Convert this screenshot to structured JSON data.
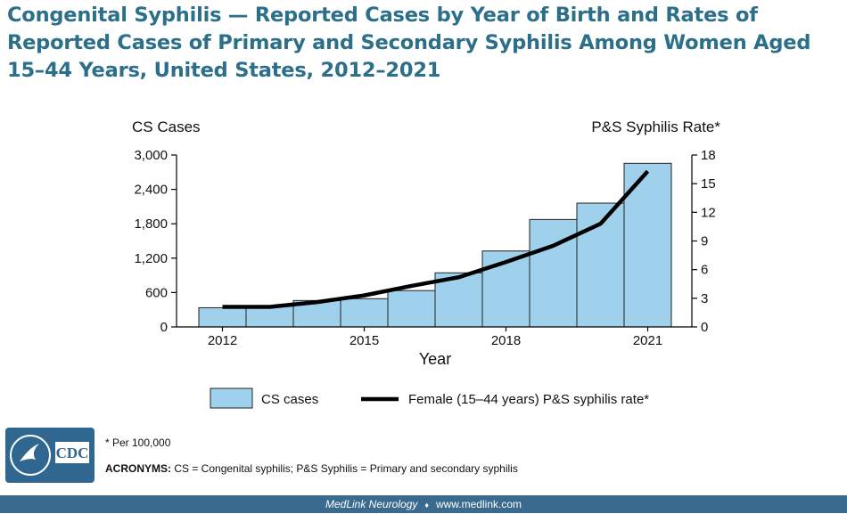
{
  "slide": {
    "title": "Congenital Syphilis — Reported Cases by Year of Birth and Rates of Reported Cases of Primary and Secondary Syphilis Among Women Aged 15–44 Years, United States, 2012–2021"
  },
  "chart_data": {
    "type": "bar",
    "x": [
      2012,
      2013,
      2014,
      2015,
      2016,
      2017,
      2018,
      2019,
      2020,
      2021
    ],
    "series": [
      {
        "name": "CS cases",
        "kind": "bar",
        "axis": "left",
        "values": [
          335,
          363,
          461,
          493,
          634,
          944,
          1325,
          1875,
          2160,
          2855
        ]
      },
      {
        "name": "Female (15–44 years) P&S syphilis rate*",
        "kind": "line",
        "axis": "right",
        "values": [
          2.1,
          2.1,
          2.6,
          3.3,
          4.3,
          5.2,
          6.8,
          8.5,
          10.8,
          16.3
        ]
      }
    ],
    "xlabel": "Year",
    "ylabel_left": "CS Cases",
    "ylabel_right": "P&S Syphilis Rate*",
    "ylim_left": [
      0,
      3000
    ],
    "ylim_right": [
      0,
      18
    ],
    "yticks_left": [
      "0",
      "600",
      "1,200",
      "1,800",
      "2,400",
      "3,000"
    ],
    "yticks_right": [
      "0",
      "3",
      "6",
      "9",
      "12",
      "15",
      "18"
    ],
    "xtick_labels": [
      {
        "year": 2012,
        "label": "2012"
      },
      {
        "year": 2015,
        "label": "2015"
      },
      {
        "year": 2018,
        "label": "2018"
      },
      {
        "year": 2021,
        "label": "2021"
      }
    ],
    "legend_position": "bottom",
    "grid": false,
    "colors": {
      "bar_fill": "#9fd0ec",
      "bar_stroke": "#222222",
      "line": "#000000"
    }
  },
  "notes": {
    "footnote": "* Per 100,000",
    "acronyms_label": "ACRONYMS:",
    "acronyms_text": " CS = Congenital syphilis; P&S Syphilis = Primary and secondary syphilis"
  },
  "logo": {
    "text": "CDC"
  },
  "footer": {
    "left": "MedLink Neurology",
    "separator": "♦",
    "right": "www.medlink.com"
  }
}
